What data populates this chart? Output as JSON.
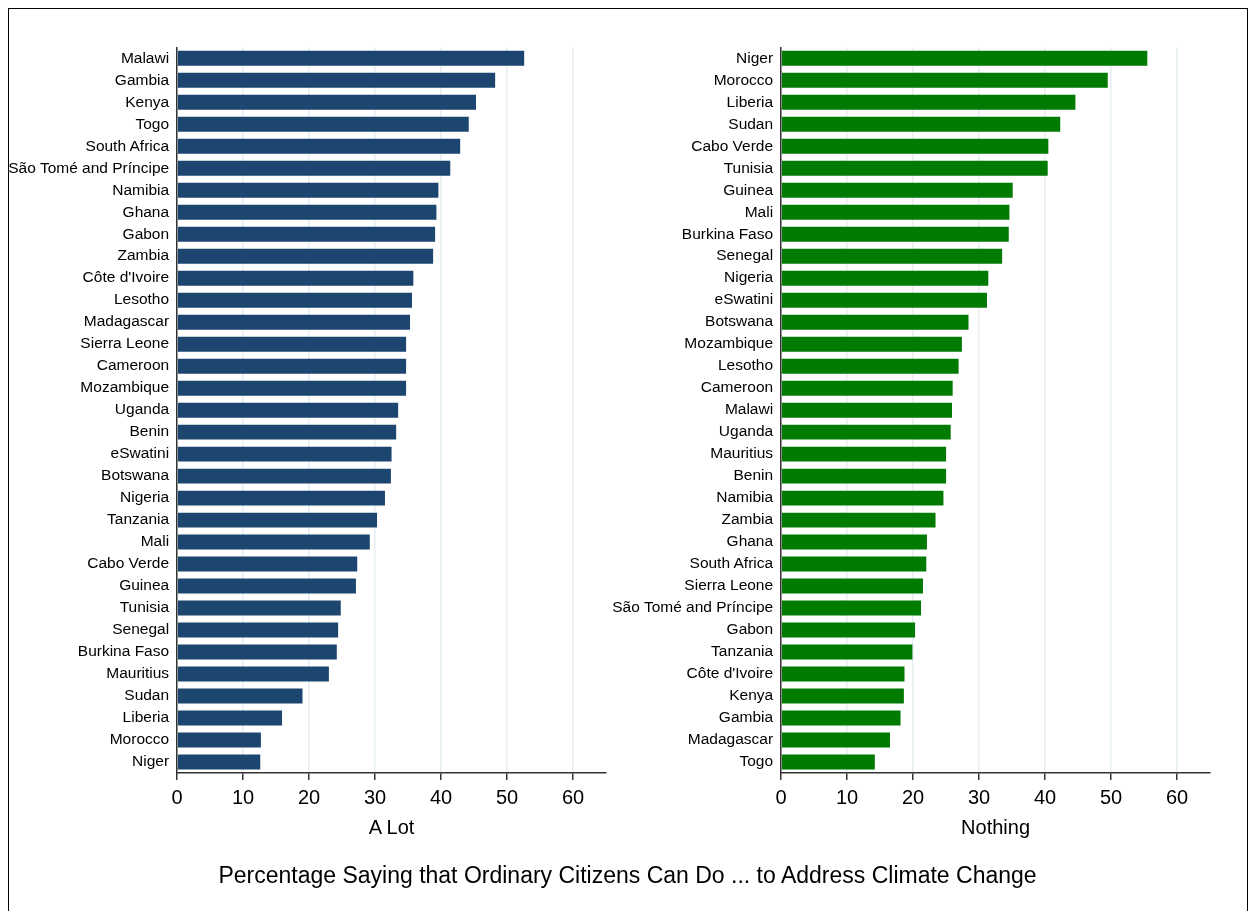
{
  "chart_data": [
    {
      "type": "bar",
      "orientation": "horizontal",
      "xlabel": "A Lot",
      "categories": [
        "Malawi",
        "Gambia",
        "Kenya",
        "Togo",
        "South Africa",
        "São Tomé and Príncipe",
        "Namibia",
        "Ghana",
        "Gabon",
        "Zambia",
        "Côte d'Ivoire",
        "Lesotho",
        "Madagascar",
        "Sierra Leone",
        "Cameroon",
        "Mozambique",
        "Uganda",
        "Benin",
        "eSwatini",
        "Botswana",
        "Nigeria",
        "Tanzania",
        "Mali",
        "Cabo Verde",
        "Guinea",
        "Tunisia",
        "Senegal",
        "Burkina Faso",
        "Mauritius",
        "Sudan",
        "Liberia",
        "Morocco",
        "Niger"
      ],
      "values": [
        52.6,
        48.2,
        45.3,
        44.2,
        42.9,
        41.4,
        39.6,
        39.3,
        39.1,
        38.8,
        35.8,
        35.6,
        35.3,
        34.7,
        34.7,
        34.7,
        33.5,
        33.2,
        32.5,
        32.4,
        31.5,
        30.3,
        29.2,
        27.3,
        27.1,
        24.8,
        24.4,
        24.2,
        23.0,
        19.0,
        15.9,
        12.7,
        12.6
      ],
      "color": "#1c4670",
      "xlim": [
        0,
        65
      ],
      "xticks": [
        0,
        10,
        20,
        30,
        40,
        50,
        60
      ],
      "grid": "x",
      "annotations": [
        "Percentage Saying that Ordinary Citizens Can Do ... to Address Climate Change"
      ]
    },
    {
      "type": "bar",
      "orientation": "horizontal",
      "xlabel": "Nothing",
      "categories": [
        "Niger",
        "Morocco",
        "Liberia",
        "Sudan",
        "Cabo Verde",
        "Tunisia",
        "Guinea",
        "Mali",
        "Burkina Faso",
        "Senegal",
        "Nigeria",
        "eSwatini",
        "Botswana",
        "Mozambique",
        "Lesotho",
        "Cameroon",
        "Malawi",
        "Uganda",
        "Mauritius",
        "Benin",
        "Namibia",
        "Zambia",
        "Ghana",
        "South Africa",
        "Sierra Leone",
        "São Tomé and Príncipe",
        "Gabon",
        "Tanzania",
        "Côte d'Ivoire",
        "Kenya",
        "Gambia",
        "Madagascar",
        "Togo"
      ],
      "values": [
        55.5,
        49.5,
        44.6,
        42.3,
        40.5,
        40.4,
        35.1,
        34.6,
        34.5,
        33.5,
        31.4,
        31.2,
        28.4,
        27.4,
        26.9,
        26.0,
        25.9,
        25.7,
        25.0,
        25.0,
        24.6,
        23.4,
        22.1,
        22.0,
        21.5,
        21.2,
        20.3,
        19.9,
        18.7,
        18.6,
        18.1,
        16.5,
        14.2
      ],
      "color": "#007a00",
      "xlim": [
        0,
        65
      ],
      "xticks": [
        0,
        10,
        20,
        30,
        40,
        50,
        60
      ],
      "grid": "x"
    }
  ]
}
